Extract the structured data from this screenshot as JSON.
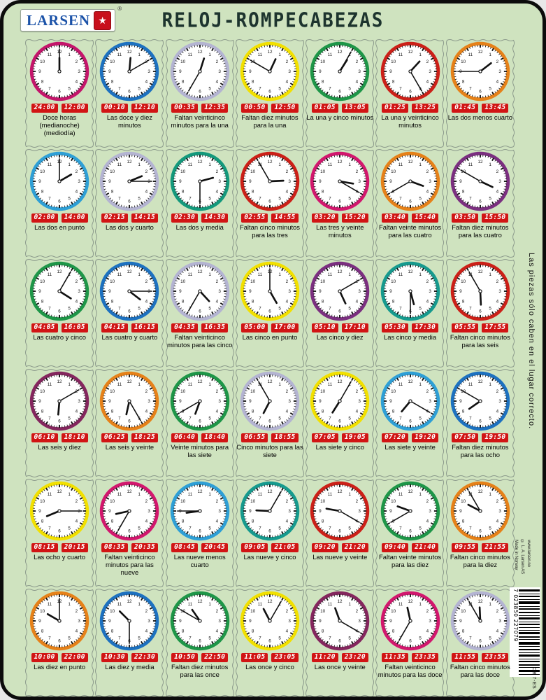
{
  "header": {
    "brand": "LARSEN",
    "registered": "®",
    "star": "★",
    "title": "RELOJ-ROMPECABEZAS"
  },
  "side": {
    "hint": "Las piezas sólo caben en el lugar correcto.",
    "made_in_lines": [
      "Made in Norway",
      "© L. A. Larsen AS",
      "www.larsen.no"
    ],
    "barcode_number": "7 023850 227079",
    "product_code": "OB 7-ES"
  },
  "colors": {
    "background": "#cfe3bf",
    "frame": "#0c0c0c",
    "badge_red": "#d11414",
    "title_ink": "#1d342e",
    "brand_blue": "#1b52a8",
    "piece_edge": "#8c9a8c"
  },
  "clocks": [
    {
      "time": "12:00",
      "rim": "#c4156b",
      "badge_left": "24:00",
      "badge_right": "12:00",
      "label": "Doce horas (medianoche) (mediodía)"
    },
    {
      "time": "12:10",
      "rim": "#1d71c0",
      "badge_left": "00:10",
      "badge_right": "12:10",
      "label": "Las doce y diez minutos"
    },
    {
      "time": "12:35",
      "rim": "#b4b4d2",
      "badge_left": "00:35",
      "badge_right": "12:35",
      "label": "Faltan veinticinco minutos para la una"
    },
    {
      "time": "12:50",
      "rim": "#f2e000",
      "badge_left": "00:50",
      "badge_right": "12:50",
      "label": "Faltan diez minutos para la una"
    },
    {
      "time": "1:05",
      "rim": "#1e9648",
      "badge_left": "01:05",
      "badge_right": "13:05",
      "label": "La una y cinco minutos"
    },
    {
      "time": "1:25",
      "rim": "#cc2018",
      "badge_left": "01:25",
      "badge_right": "13:25",
      "label": "La una y veinticinco minutos"
    },
    {
      "time": "1:45",
      "rim": "#e68119",
      "badge_left": "01:45",
      "badge_right": "13:45",
      "label": "Las dos menos cuarto"
    },
    {
      "time": "2:00",
      "rim": "#2e9fd6",
      "badge_left": "02:00",
      "badge_right": "14:00",
      "label": "Las dos en punto"
    },
    {
      "time": "2:15",
      "rim": "#b4b4d2",
      "badge_left": "02:15",
      "badge_right": "14:15",
      "label": "Las dos y cuarto"
    },
    {
      "time": "2:30",
      "rim": "#14997c",
      "badge_left": "02:30",
      "badge_right": "14:30",
      "label": "Las dos y media"
    },
    {
      "time": "2:55",
      "rim": "#cc2018",
      "badge_left": "02:55",
      "badge_right": "14:55",
      "label": "Faltan cinco minutos para las tres"
    },
    {
      "time": "3:20",
      "rim": "#d2176e",
      "badge_left": "03:20",
      "badge_right": "15:20",
      "label": "Las tres y veinte minutos"
    },
    {
      "time": "3:40",
      "rim": "#e68119",
      "badge_left": "03:40",
      "badge_right": "15:40",
      "label": "Faltan veinte minutos para las cuatro"
    },
    {
      "time": "3:50",
      "rim": "#7b2f80",
      "badge_left": "03:50",
      "badge_right": "15:50",
      "label": "Faltan diez minutos para las cuatro"
    },
    {
      "time": "4:05",
      "rim": "#1e9648",
      "badge_left": "04:05",
      "badge_right": "16:05",
      "label": "Las cuatro y cinco"
    },
    {
      "time": "4:15",
      "rim": "#1d71c0",
      "badge_left": "04:15",
      "badge_right": "16:15",
      "label": "Las cuatro y cuarto"
    },
    {
      "time": "4:35",
      "rim": "#b4b4d2",
      "badge_left": "04:35",
      "badge_right": "16:35",
      "label": "Faltan veinticinco minutos para las cinco"
    },
    {
      "time": "5:00",
      "rim": "#f2e000",
      "badge_left": "05:00",
      "badge_right": "17:00",
      "label": "Las cinco en punto"
    },
    {
      "time": "5:10",
      "rim": "#7b2f80",
      "badge_left": "05:10",
      "badge_right": "17:10",
      "label": "Las cinco y diez"
    },
    {
      "time": "5:30",
      "rim": "#169a8e",
      "badge_left": "05:30",
      "badge_right": "17:30",
      "label": "Las cinco y media"
    },
    {
      "time": "5:55",
      "rim": "#cc2018",
      "badge_left": "05:55",
      "badge_right": "17:55",
      "label": "Faltan cinco minutos para las seis"
    },
    {
      "time": "6:10",
      "rim": "#84265e",
      "badge_left": "06:10",
      "badge_right": "18:10",
      "label": "Las seis y diez"
    },
    {
      "time": "6:25",
      "rim": "#e68119",
      "badge_left": "06:25",
      "badge_right": "18:25",
      "label": "Las seis y veinte"
    },
    {
      "time": "6:40",
      "rim": "#1e9648",
      "badge_left": "06:40",
      "badge_right": "18:40",
      "label": "Veinte minutos para las siete"
    },
    {
      "time": "6:55",
      "rim": "#b4b4d2",
      "badge_left": "06:55",
      "badge_right": "18:55",
      "label": "Cinco minutos para las siete"
    },
    {
      "time": "7:05",
      "rim": "#f2e000",
      "badge_left": "07:05",
      "badge_right": "19:05",
      "label": "Las siete y cinco"
    },
    {
      "time": "7:20",
      "rim": "#2e9fd6",
      "badge_left": "07:20",
      "badge_right": "19:20",
      "label": "Las siete y veinte"
    },
    {
      "time": "7:50",
      "rim": "#1d71c0",
      "badge_left": "07:50",
      "badge_right": "19:50",
      "label": "Faltan diez minutos para las ocho"
    },
    {
      "time": "8:15",
      "rim": "#f2e000",
      "badge_left": "08:15",
      "badge_right": "20:15",
      "label": "Las ocho y cuarto"
    },
    {
      "time": "8:35",
      "rim": "#d2176e",
      "badge_left": "08:35",
      "badge_right": "20:35",
      "label": "Faltan veinticinco minutos para las nueve"
    },
    {
      "time": "8:45",
      "rim": "#2e9fd6",
      "badge_left": "08:45",
      "badge_right": "20:45",
      "label": "Las nueve menos cuarto"
    },
    {
      "time": "9:05",
      "rim": "#169a8e",
      "badge_left": "09:05",
      "badge_right": "21:05",
      "label": "Las nueve y cinco"
    },
    {
      "time": "9:20",
      "rim": "#cc2018",
      "badge_left": "09:20",
      "badge_right": "21:20",
      "label": "Las nueve y veinte"
    },
    {
      "time": "9:40",
      "rim": "#1e9648",
      "badge_left": "09:40",
      "badge_right": "21:40",
      "label": "Faltan veinte minutos para las diez"
    },
    {
      "time": "9:55",
      "rim": "#e68119",
      "badge_left": "09:55",
      "badge_right": "21:55",
      "label": "Faltan cinco minutos para la diez"
    },
    {
      "time": "10:00",
      "rim": "#e68119",
      "badge_left": "10:00",
      "badge_right": "22:00",
      "label": "Las diez en punto"
    },
    {
      "time": "10:30",
      "rim": "#1d71c0",
      "badge_left": "10:30",
      "badge_right": "22:30",
      "label": "Las diez y media"
    },
    {
      "time": "10:50",
      "rim": "#1e9648",
      "badge_left": "10:50",
      "badge_right": "22:50",
      "label": "Faltan diez minutos para las once"
    },
    {
      "time": "11:05",
      "rim": "#f2e000",
      "badge_left": "11:05",
      "badge_right": "23:05",
      "label": "Las once y cinco"
    },
    {
      "time": "11:20",
      "rim": "#84265e",
      "badge_left": "11:20",
      "badge_right": "23:20",
      "label": "Las once y veinte"
    },
    {
      "time": "11:35",
      "rim": "#d2176e",
      "badge_left": "11:35",
      "badge_right": "23:35",
      "label": "Faltan veinticinco minutos para las doce"
    },
    {
      "time": "11:55",
      "rim": "#b4b4d2",
      "badge_left": "11:55",
      "badge_right": "23:55",
      "label": "Faltan cinco minutos para las doce"
    }
  ]
}
